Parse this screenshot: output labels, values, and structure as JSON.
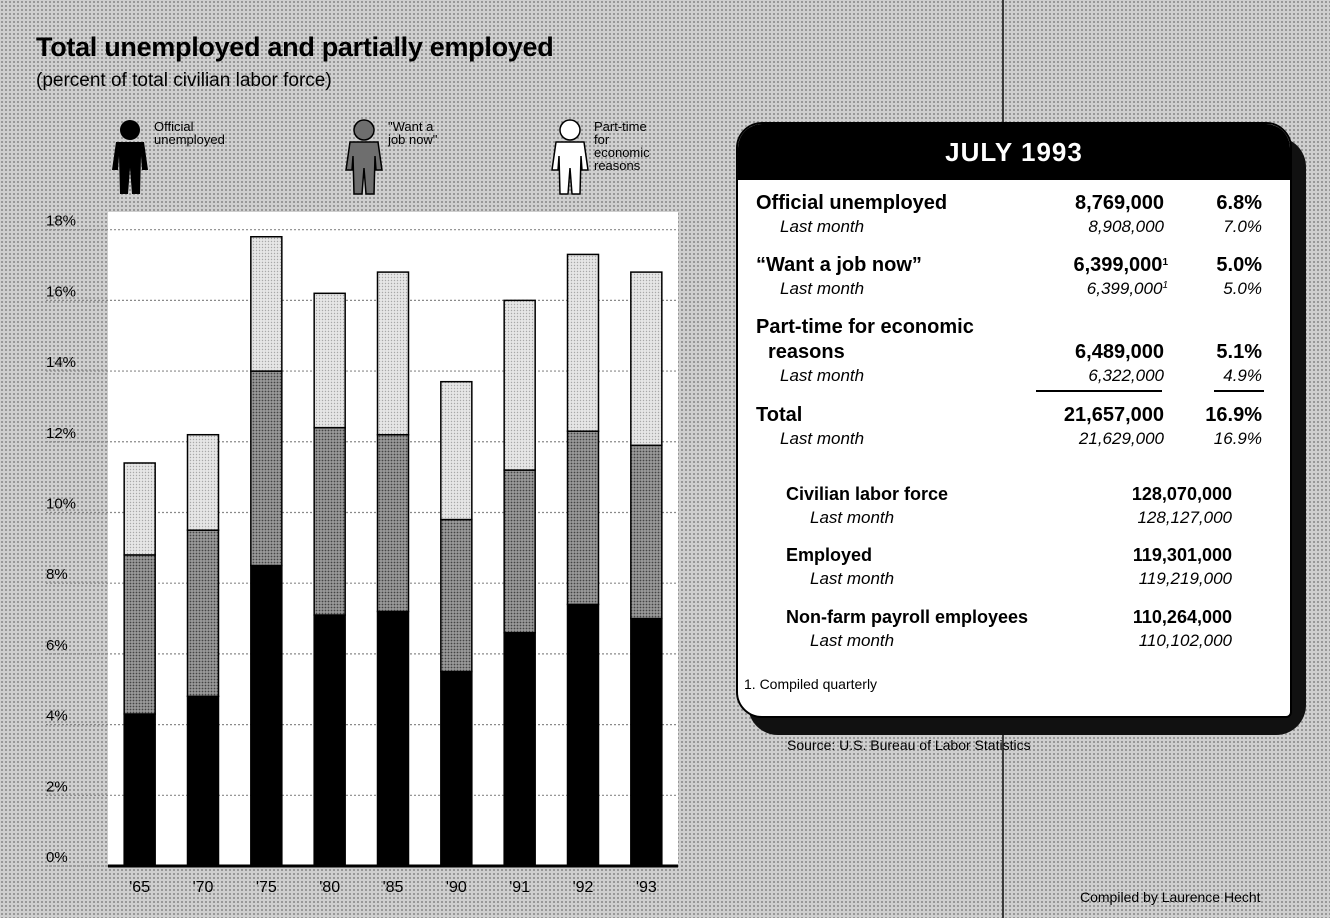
{
  "title": "Total unemployed and partially employed",
  "subtitle": "(percent of total civilian labor force)",
  "legend": [
    {
      "label": "Official unemployed",
      "lines": [
        "Official",
        "unemployed"
      ],
      "color": "#000000",
      "icon": "person-black-icon"
    },
    {
      "label": "\"Want a job now\"",
      "lines": [
        "\"Want a",
        "job now\""
      ],
      "color": "#6e6e6e",
      "icon": "person-gray-icon"
    },
    {
      "label": "Part-time for economic reasons",
      "lines": [
        "Part-time",
        "for",
        "economic",
        "reasons"
      ],
      "color": "#d9d9d9",
      "icon": "person-outline-icon"
    }
  ],
  "chart_data": {
    "type": "bar",
    "stacked": true,
    "categories": [
      "'65",
      "'70",
      "'75",
      "'80",
      "'85",
      "'90",
      "'91",
      "'92",
      "'93"
    ],
    "series": [
      {
        "name": "Official unemployed",
        "values": [
          4.3,
          4.8,
          8.5,
          7.1,
          7.2,
          5.5,
          6.6,
          7.4,
          7.0
        ],
        "color": "#000000"
      },
      {
        "name": "\"Want a job now\"",
        "values": [
          4.5,
          4.7,
          5.5,
          5.3,
          5.0,
          4.3,
          4.6,
          4.9,
          4.9
        ],
        "color": "#6e6e6e"
      },
      {
        "name": "Part-time for economic reasons",
        "values": [
          2.6,
          2.7,
          3.8,
          3.8,
          4.6,
          3.9,
          4.8,
          5.0,
          4.9
        ],
        "color": "#d9d9d9"
      }
    ],
    "yticks": [
      "0%",
      "2%",
      "4%",
      "6%",
      "8%",
      "10%",
      "12%",
      "14%",
      "16%",
      "18%"
    ],
    "ylim": [
      0,
      18.5
    ],
    "grid": true
  },
  "table": {
    "header": "JULY 1993",
    "rows": [
      {
        "label": "Official unemployed",
        "value": "8,769,000",
        "pct": "6.8%",
        "last_label": "Last month",
        "last_value": "8,908,000",
        "last_pct": "7.0%"
      },
      {
        "label": "“Want a job now”",
        "value": "6,399,000",
        "value_sup": "1",
        "pct": "5.0%",
        "last_label": "Last month",
        "last_value": "6,399,000",
        "last_value_sup": "1",
        "last_pct": "5.0%"
      },
      {
        "label_line1": "Part-time for economic",
        "label_line2": "reasons",
        "value": "6,489,000",
        "pct": "5.1%",
        "last_label": "Last month",
        "last_value": "6,322,000",
        "last_pct": "4.9%"
      },
      {
        "label": "Total",
        "value": "21,657,000",
        "pct": "16.9%",
        "last_label": "Last month",
        "last_value": "21,629,000",
        "last_pct": "16.9%"
      }
    ],
    "other": [
      {
        "label": "Civilian labor force",
        "value": "128,070,000",
        "last_label": "Last month",
        "last_value": "128,127,000"
      },
      {
        "label": "Employed",
        "value": "119,301,000",
        "last_label": "Last month",
        "last_value": "119,219,000"
      },
      {
        "label": "Non-farm payroll employees",
        "value": "110,264,000",
        "last_label": "Last month",
        "last_value": "110,102,000"
      }
    ],
    "footnote": "1. Compiled quarterly"
  },
  "source": "Source: U.S. Bureau of Labor Statistics",
  "credit": "Compiled by Laurence Hecht"
}
